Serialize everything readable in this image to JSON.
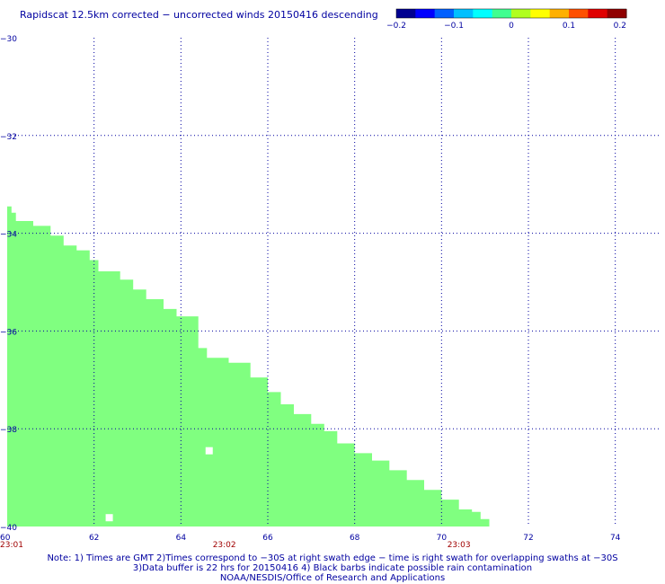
{
  "title": "Rapidscat 12.5km corrected − uncorrected winds 20150416 descending",
  "colorbar": {
    "ticks": [
      "−0.2",
      "−0.1",
      "0",
      "0.1",
      "0.2"
    ],
    "colors": [
      "#000090",
      "#0000ff",
      "#0060ff",
      "#00c0ff",
      "#00ffff",
      "#40ff90",
      "#b0ff20",
      "#ffff00",
      "#ffb000",
      "#ff5000",
      "#e00000",
      "#900000"
    ]
  },
  "map": {
    "lon_range": [
      60,
      75
    ],
    "lat_range": [
      -40,
      -30
    ],
    "lon_ticks": [
      "60",
      "62",
      "64",
      "66",
      "68",
      "70",
      "72",
      "74"
    ],
    "lat_ticks": [
      "−30",
      "−32",
      "−34",
      "−36",
      "−38",
      "−40"
    ],
    "grid": "dotted",
    "swath_color": "#80ff80",
    "swath_edge": [
      [
        60.0,
        -33.45
      ],
      [
        60.1,
        -33.58
      ],
      [
        60.2,
        -33.75
      ],
      [
        60.6,
        -33.85
      ],
      [
        61.0,
        -34.05
      ],
      [
        61.3,
        -34.25
      ],
      [
        61.6,
        -34.35
      ],
      [
        61.9,
        -34.55
      ],
      [
        62.1,
        -34.78
      ],
      [
        62.6,
        -34.95
      ],
      [
        62.9,
        -35.15
      ],
      [
        63.2,
        -35.35
      ],
      [
        63.6,
        -35.55
      ],
      [
        63.9,
        -35.7
      ],
      [
        64.4,
        -36.35
      ],
      [
        64.6,
        -36.55
      ],
      [
        65.1,
        -36.65
      ],
      [
        65.6,
        -36.95
      ],
      [
        66.0,
        -37.25
      ],
      [
        66.3,
        -37.5
      ],
      [
        66.6,
        -37.7
      ],
      [
        67.0,
        -37.9
      ],
      [
        67.3,
        -38.05
      ],
      [
        67.6,
        -38.3
      ],
      [
        68.0,
        -38.5
      ],
      [
        68.4,
        -38.65
      ],
      [
        68.8,
        -38.85
      ],
      [
        69.2,
        -39.05
      ],
      [
        69.6,
        -39.25
      ],
      [
        70.0,
        -39.45
      ],
      [
        70.4,
        -39.65
      ],
      [
        70.7,
        -39.7
      ],
      [
        70.9,
        -39.85
      ],
      [
        71.1,
        -40.0
      ]
    ],
    "missing_cells": [
      [
        62.35,
        -39.82
      ],
      [
        64.65,
        -38.45
      ]
    ],
    "time_labels": [
      {
        "text": "23:01",
        "lon": 60.0
      },
      {
        "text": "23:02",
        "lon": 65.0
      },
      {
        "text": "23:03",
        "lon": 70.4
      }
    ]
  },
  "notes": [
    "Note: 1) Times are GMT 2)Times correspond to −30S at right swath edge − time is right swath for overlapping swaths at −30S",
    "3)Data buffer is 22 hrs for 20150416 4) Black barbs indicate possible rain contamination",
    "NOAA/NESDIS/Office of Research and Applications"
  ]
}
